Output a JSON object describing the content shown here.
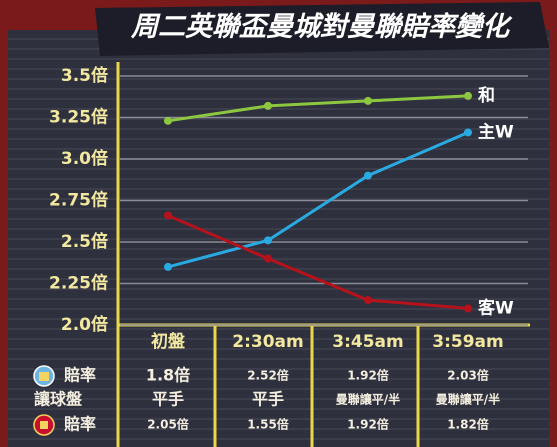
{
  "chart_data": {
    "type": "line",
    "title": "周二英聯盃曼城對曼聯賠率變化",
    "categories": [
      "初盤",
      "2:30am",
      "3:45am",
      "3:59am"
    ],
    "series": [
      {
        "name": "和",
        "color": "#8dc63f",
        "values": [
          3.23,
          3.32,
          3.35,
          3.38
        ]
      },
      {
        "name": "主W",
        "color": "#29abe2",
        "values": [
          2.35,
          2.51,
          2.9,
          3.16
        ]
      },
      {
        "name": "客W",
        "color": "#b5121b",
        "values": [
          2.66,
          2.4,
          2.15,
          2.1
        ]
      }
    ],
    "ylim": [
      2.0,
      3.5
    ],
    "yticks": [
      {
        "value": 2.0,
        "label": "2.0倍"
      },
      {
        "value": 2.25,
        "label": "2.25倍"
      },
      {
        "value": 2.5,
        "label": "2.5倍"
      },
      {
        "value": 2.75,
        "label": "2.75倍"
      },
      {
        "value": 3.0,
        "label": "3.0倍"
      },
      {
        "value": 3.25,
        "label": "3.25倍"
      },
      {
        "value": 3.5,
        "label": "3.5倍"
      }
    ],
    "grid": true
  },
  "table": {
    "rows": [
      [
        "賠率",
        "1.8倍",
        "2.52倍",
        "1.92倍",
        "2.03倍"
      ],
      [
        "讓球盤",
        "平手",
        "平手",
        "曼聯讓平/半",
        "曼聯讓平/半"
      ],
      [
        "賠率",
        "2.05倍",
        "1.55倍",
        "1.92倍",
        "1.82倍"
      ]
    ]
  }
}
